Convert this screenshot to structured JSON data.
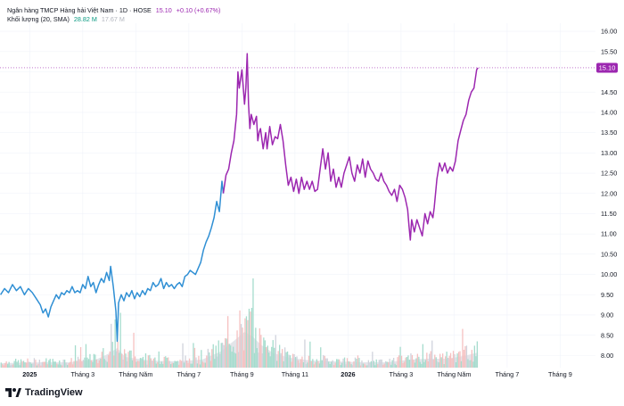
{
  "legend": {
    "symbol_title": "Ngân hàng TMCP Hàng hải Việt Nam · 1D · HOSE",
    "last_price": "15.10",
    "change": "+0.10 (+0.67%)",
    "volume_label": "Khối lượng (20, SMA)",
    "volume_value": "28.82 M",
    "volume_sma": "17.67 M"
  },
  "branding": {
    "logo_text": "TradingView",
    "logo_icon": "tradingview-logo-icon"
  },
  "colors": {
    "price_blue": "#2f8fd4",
    "price_purple": "#9c27b0",
    "price_label_bg": "#9c27b0",
    "volume_bar": "#d0d3dc",
    "volume_bar_up": "#a5dccd",
    "volume_bar_down": "#f6c0c0",
    "sma_area": "#e3e5ea",
    "grid": "#f0f3fa",
    "axis_text": "#131722",
    "legend_green": "#089981",
    "legend_muted": "#b2b5be"
  },
  "chart_data": {
    "type": "line",
    "y_axis_ticks": [
      "16.00",
      "15.50",
      "15.00",
      "14.50",
      "14.00",
      "13.50",
      "13.00",
      "12.50",
      "12.00",
      "11.50",
      "11.00",
      "10.50",
      "10.00",
      "9.50",
      "9.00",
      "8.50",
      "8.00"
    ],
    "ylim": [
      7.7,
      16.2
    ],
    "x_axis_ticks": [
      {
        "label": "2025",
        "month_index": 0,
        "bold": true
      },
      {
        "label": "Tháng 3",
        "month_index": 2
      },
      {
        "label": "Tháng Năm",
        "month_index": 4
      },
      {
        "label": "Tháng 7",
        "month_index": 6
      },
      {
        "label": "Tháng 9",
        "month_index": 8
      },
      {
        "label": "Tháng 11",
        "month_index": 10
      },
      {
        "label": "2026",
        "month_index": 12,
        "bold": true
      },
      {
        "label": "Tháng 3",
        "month_index": 14
      },
      {
        "label": "Tháng Năm",
        "month_index": 16
      },
      {
        "label": "Tháng 7",
        "month_index": 18
      },
      {
        "label": "Tháng 9",
        "month_index": 20
      }
    ],
    "xlim_month_index": [
      -1.12,
      21.33
    ],
    "last_price_label": "15.10",
    "series": [
      {
        "points": [
          [
            -1.1,
            9.5
          ],
          [
            -0.95,
            9.65
          ],
          [
            -0.8,
            9.55
          ],
          [
            -0.65,
            9.75
          ],
          [
            -0.5,
            9.6
          ],
          [
            -0.35,
            9.7
          ],
          [
            -0.2,
            9.5
          ],
          [
            -0.05,
            9.65
          ],
          [
            0.1,
            9.55
          ],
          [
            0.25,
            9.4
          ],
          [
            0.4,
            9.25
          ],
          [
            0.5,
            9.05
          ],
          [
            0.6,
            9.15
          ],
          [
            0.7,
            8.95
          ],
          [
            0.8,
            9.2
          ],
          [
            0.9,
            9.35
          ],
          [
            1.0,
            9.5
          ],
          [
            1.1,
            9.4
          ],
          [
            1.2,
            9.55
          ],
          [
            1.3,
            9.5
          ],
          [
            1.4,
            9.6
          ],
          [
            1.5,
            9.55
          ],
          [
            1.6,
            9.7
          ],
          [
            1.7,
            9.55
          ],
          [
            1.8,
            9.6
          ],
          [
            1.9,
            9.55
          ],
          [
            2.0,
            9.75
          ],
          [
            2.1,
            9.65
          ],
          [
            2.2,
            9.95
          ],
          [
            2.3,
            9.7
          ],
          [
            2.4,
            9.8
          ],
          [
            2.5,
            9.55
          ],
          [
            2.6,
            9.75
          ],
          [
            2.7,
            9.9
          ],
          [
            2.8,
            9.8
          ],
          [
            2.9,
            10.05
          ],
          [
            3.0,
            9.85
          ],
          [
            3.05,
            10.2
          ],
          [
            3.15,
            9.7
          ],
          [
            3.25,
            9.1
          ],
          [
            3.3,
            8.35
          ],
          [
            3.35,
            9.3
          ],
          [
            3.45,
            9.5
          ],
          [
            3.55,
            9.35
          ],
          [
            3.65,
            9.55
          ],
          [
            3.75,
            9.45
          ],
          [
            3.85,
            9.6
          ],
          [
            3.95,
            9.4
          ],
          [
            4.05,
            9.55
          ],
          [
            4.15,
            9.45
          ],
          [
            4.25,
            9.6
          ],
          [
            4.35,
            9.5
          ],
          [
            4.45,
            9.65
          ],
          [
            4.55,
            9.6
          ],
          [
            4.65,
            9.8
          ],
          [
            4.75,
            9.7
          ],
          [
            4.85,
            9.75
          ],
          [
            4.95,
            9.9
          ],
          [
            5.05,
            9.65
          ],
          [
            5.15,
            9.8
          ],
          [
            5.25,
            9.7
          ],
          [
            5.35,
            9.75
          ],
          [
            5.45,
            9.65
          ],
          [
            5.55,
            9.75
          ],
          [
            5.65,
            9.8
          ],
          [
            5.75,
            9.7
          ],
          [
            5.85,
            9.95
          ],
          [
            5.95,
            10.0
          ],
          [
            6.05,
            10.1
          ],
          [
            6.15,
            10.05
          ],
          [
            6.25,
            10.0
          ],
          [
            6.35,
            10.15
          ],
          [
            6.45,
            10.3
          ],
          [
            6.55,
            10.6
          ],
          [
            6.65,
            10.8
          ],
          [
            6.75,
            10.95
          ],
          [
            6.85,
            11.15
          ],
          [
            6.95,
            11.4
          ],
          [
            7.05,
            11.8
          ],
          [
            7.15,
            11.55
          ],
          [
            7.25,
            12.3
          ],
          [
            7.3,
            12.0
          ]
        ]
      },
      {
        "points": [
          [
            7.3,
            12.0
          ],
          [
            7.4,
            12.45
          ],
          [
            7.5,
            12.6
          ],
          [
            7.6,
            13.0
          ],
          [
            7.7,
            13.3
          ],
          [
            7.8,
            13.95
          ],
          [
            7.85,
            15.0
          ],
          [
            7.9,
            14.6
          ],
          [
            8.0,
            15.05
          ],
          [
            8.1,
            14.2
          ],
          [
            8.15,
            14.6
          ],
          [
            8.2,
            15.45
          ],
          [
            8.25,
            14.2
          ],
          [
            8.3,
            13.6
          ],
          [
            8.35,
            13.95
          ],
          [
            8.45,
            13.7
          ],
          [
            8.55,
            13.9
          ],
          [
            8.6,
            13.3
          ],
          [
            8.65,
            13.5
          ],
          [
            8.7,
            13.6
          ],
          [
            8.8,
            13.1
          ],
          [
            8.9,
            13.5
          ],
          [
            8.95,
            13.1
          ],
          [
            9.05,
            13.65
          ],
          [
            9.15,
            13.2
          ],
          [
            9.25,
            13.4
          ],
          [
            9.35,
            13.35
          ],
          [
            9.45,
            13.7
          ],
          [
            9.55,
            13.3
          ],
          [
            9.65,
            12.7
          ],
          [
            9.75,
            12.2
          ],
          [
            9.85,
            12.4
          ],
          [
            9.95,
            12.05
          ],
          [
            10.05,
            12.35
          ],
          [
            10.15,
            12.0
          ],
          [
            10.25,
            12.4
          ],
          [
            10.35,
            12.1
          ],
          [
            10.45,
            12.3
          ],
          [
            10.55,
            12.1
          ],
          [
            10.65,
            12.3
          ],
          [
            10.75,
            12.05
          ],
          [
            10.85,
            12.1
          ],
          [
            10.95,
            12.6
          ],
          [
            11.05,
            13.1
          ],
          [
            11.15,
            12.6
          ],
          [
            11.25,
            13.0
          ],
          [
            11.35,
            12.3
          ],
          [
            11.45,
            12.6
          ],
          [
            11.55,
            12.15
          ],
          [
            11.65,
            12.4
          ],
          [
            11.75,
            12.15
          ],
          [
            11.85,
            12.5
          ],
          [
            11.95,
            12.7
          ],
          [
            12.05,
            12.9
          ],
          [
            12.15,
            12.5
          ],
          [
            12.25,
            12.3
          ],
          [
            12.35,
            12.7
          ],
          [
            12.45,
            12.5
          ],
          [
            12.55,
            12.85
          ],
          [
            12.65,
            12.4
          ],
          [
            12.75,
            12.8
          ],
          [
            12.85,
            12.6
          ],
          [
            12.95,
            12.5
          ],
          [
            13.05,
            12.35
          ],
          [
            13.15,
            12.3
          ],
          [
            13.25,
            12.5
          ],
          [
            13.35,
            12.3
          ],
          [
            13.45,
            12.2
          ],
          [
            13.55,
            12.05
          ],
          [
            13.65,
            11.95
          ],
          [
            13.75,
            12.1
          ],
          [
            13.85,
            11.8
          ],
          [
            13.95,
            12.2
          ],
          [
            14.05,
            12.1
          ],
          [
            14.15,
            11.9
          ],
          [
            14.25,
            11.6
          ],
          [
            14.3,
            11.2
          ],
          [
            14.35,
            10.85
          ],
          [
            14.4,
            11.35
          ],
          [
            14.5,
            11.05
          ],
          [
            14.6,
            11.35
          ],
          [
            14.7,
            11.15
          ],
          [
            14.8,
            10.95
          ],
          [
            14.9,
            11.5
          ],
          [
            15.0,
            11.25
          ],
          [
            15.1,
            11.55
          ],
          [
            15.2,
            11.4
          ],
          [
            15.25,
            11.65
          ],
          [
            15.35,
            12.35
          ],
          [
            15.45,
            12.75
          ],
          [
            15.55,
            12.55
          ],
          [
            15.65,
            12.75
          ],
          [
            15.75,
            12.5
          ],
          [
            15.85,
            12.65
          ],
          [
            15.95,
            12.55
          ],
          [
            16.05,
            12.8
          ],
          [
            16.15,
            13.3
          ],
          [
            16.25,
            13.55
          ],
          [
            16.35,
            13.8
          ],
          [
            16.45,
            13.95
          ],
          [
            16.55,
            14.3
          ],
          [
            16.65,
            14.5
          ],
          [
            16.75,
            14.6
          ],
          [
            16.85,
            15.05
          ],
          [
            16.9,
            15.1
          ]
        ]
      }
    ],
    "volume": {
      "note": "relative volume per session, 0-1",
      "sma_envelope": [
        [
          -1.1,
          0.05
        ],
        [
          0.5,
          0.06
        ],
        [
          1.5,
          0.06
        ],
        [
          2.5,
          0.09
        ],
        [
          3.0,
          0.16
        ],
        [
          3.3,
          0.22
        ],
        [
          3.6,
          0.12
        ],
        [
          4.5,
          0.08
        ],
        [
          5.5,
          0.07
        ],
        [
          6.5,
          0.09
        ],
        [
          7.2,
          0.18
        ],
        [
          7.7,
          0.3
        ],
        [
          8.1,
          0.4
        ],
        [
          8.4,
          0.35
        ],
        [
          8.7,
          0.26
        ],
        [
          9.2,
          0.16
        ],
        [
          9.8,
          0.11
        ],
        [
          10.6,
          0.08
        ],
        [
          11.5,
          0.07
        ],
        [
          12.5,
          0.06
        ],
        [
          13.5,
          0.06
        ],
        [
          14.3,
          0.09
        ],
        [
          15.0,
          0.1
        ],
        [
          15.8,
          0.1
        ],
        [
          16.5,
          0.14
        ],
        [
          16.9,
          0.17
        ]
      ]
    }
  }
}
